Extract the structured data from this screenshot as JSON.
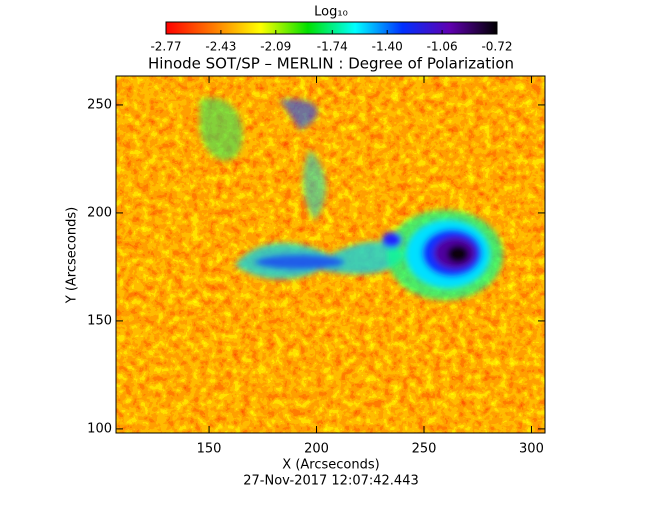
{
  "chart_data": {
    "type": "heatmap",
    "title": "Hinode SOT/SP – MERLIN : Degree of Polarization",
    "x_label": "X (Arcseconds)",
    "y_label": "Y (Arcseconds)",
    "subtitle": "27-Nov-2017 12:07:42.443",
    "xlim": [
      106.7,
      306.3
    ],
    "xticks": [
      150,
      200,
      250,
      300
    ],
    "ylim": [
      98.1,
      263.4
    ],
    "yticks": [
      100,
      150,
      200,
      250
    ],
    "colorbar": {
      "label": "Log₁₀",
      "lim": [
        -2.77,
        -0.72
      ],
      "ticks": [
        -2.77,
        -2.43,
        -2.09,
        -1.74,
        {
          "value": -1.4,
          "label": "-1.40"
        },
        -1.06,
        -0.72
      ],
      "colormap": [
        "#ff0000",
        "#ff7a00",
        "#ffff00",
        "#00e000",
        "#00ffff",
        "#0030ff",
        "#6000b0",
        "#000000"
      ]
    }
  }
}
